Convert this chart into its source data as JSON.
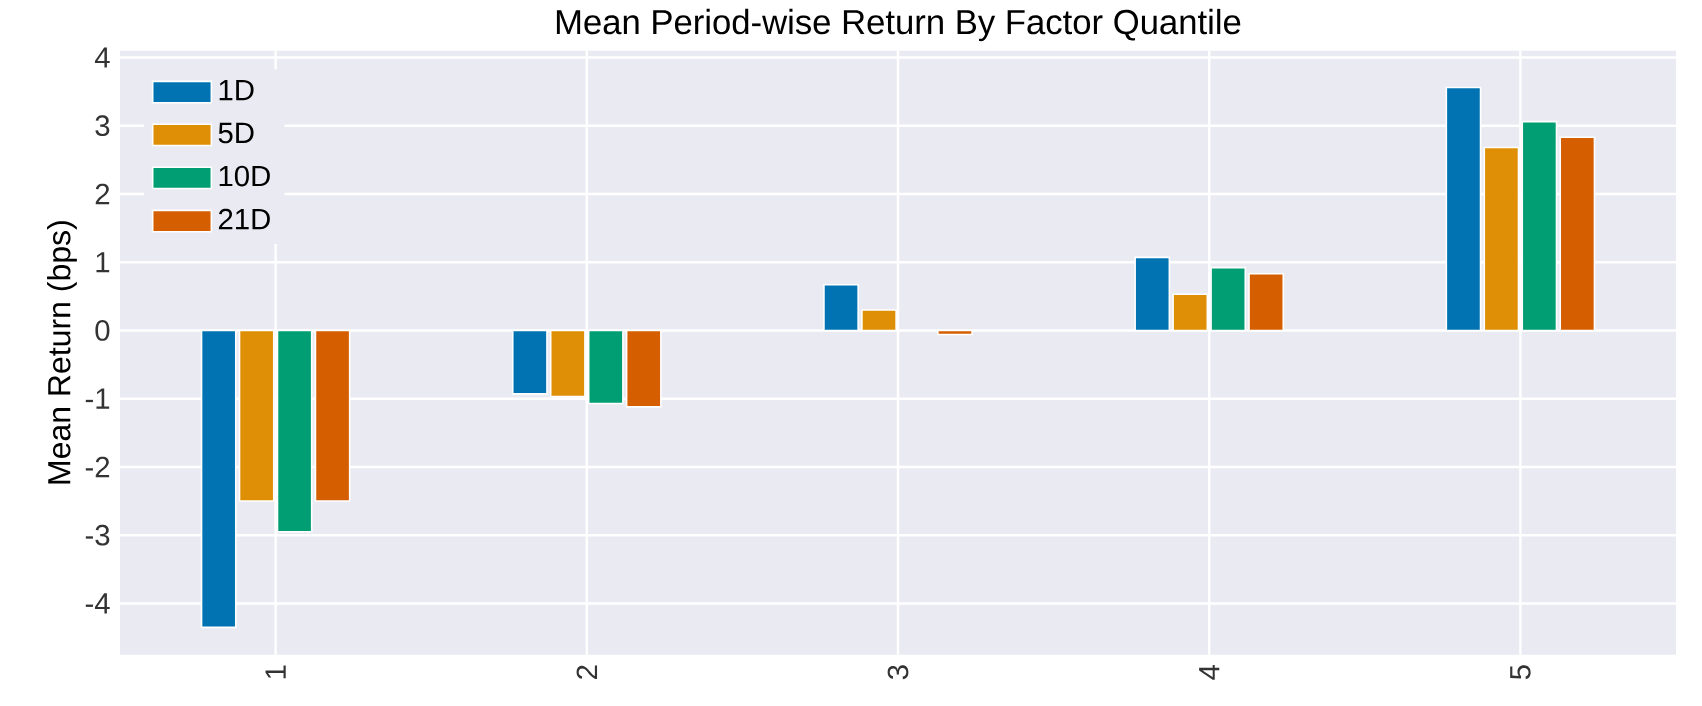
{
  "chart_data": {
    "type": "bar",
    "title": "Mean Period-wise Return By Factor Quantile",
    "ylabel": "Mean Return (bps)",
    "categories": [
      "1",
      "2",
      "3",
      "4",
      "5"
    ],
    "series": [
      {
        "name": "1D",
        "color": "#0173b2",
        "values": [
          -4.35,
          -0.93,
          0.67,
          1.07,
          3.56
        ]
      },
      {
        "name": "5D",
        "color": "#de8f05",
        "values": [
          -2.5,
          -0.97,
          0.3,
          0.53,
          2.68
        ]
      },
      {
        "name": "10D",
        "color": "#029e73",
        "values": [
          -2.95,
          -1.07,
          null,
          0.92,
          3.06
        ]
      },
      {
        "name": "21D",
        "color": "#d55e00",
        "values": [
          -2.5,
          -1.12,
          -0.06,
          0.83,
          2.83
        ]
      }
    ],
    "ylim": [
      -4.75,
      4.1
    ],
    "yticks": [
      -4,
      -3,
      -2,
      -1,
      0,
      1,
      2,
      3,
      4
    ],
    "grid": true,
    "legend": "top left"
  }
}
